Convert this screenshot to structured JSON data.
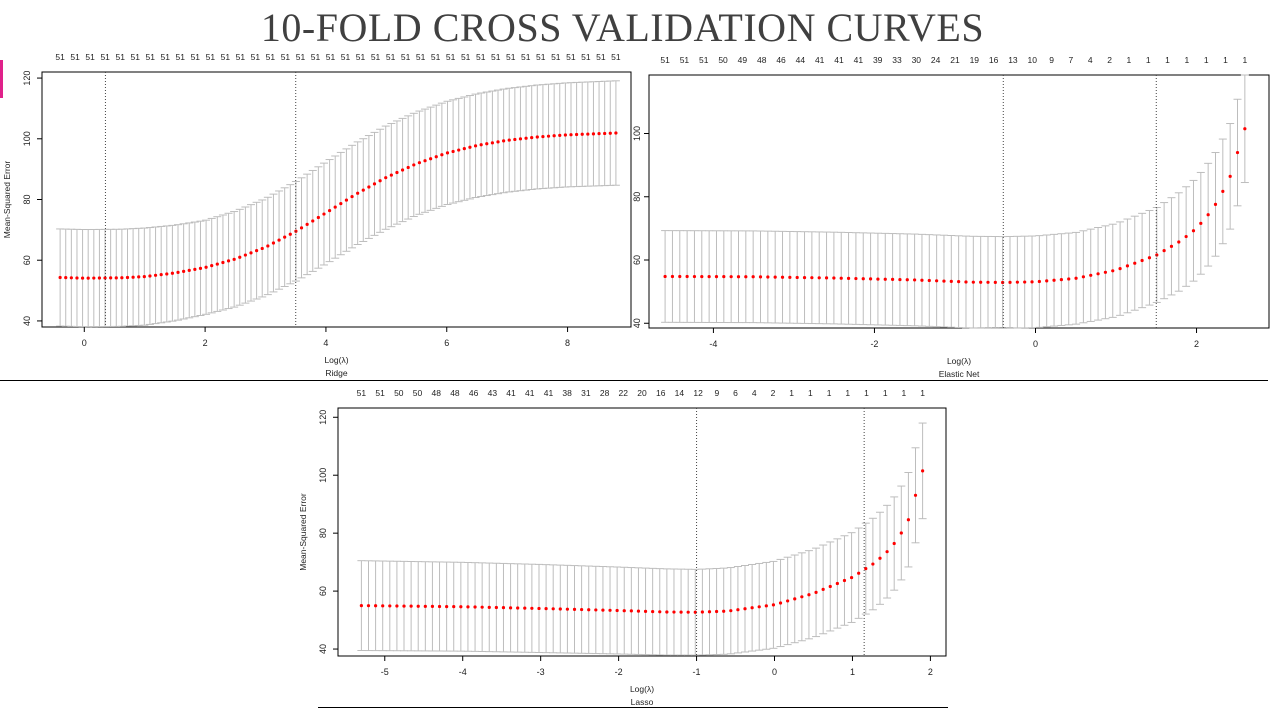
{
  "slide": {
    "title": "10-FOLD CROSS VALIDATION CURVES"
  },
  "chart_data": [
    {
      "type": "scatter",
      "title": "",
      "caption": "Ridge",
      "xlabel": "Log(λ)",
      "ylabel": "Mean-Squared Error",
      "xlim": [
        -0.7,
        9.05
      ],
      "ylim": [
        38,
        122
      ],
      "x_ticks": [
        0,
        2,
        4,
        6,
        8
      ],
      "y_ticks": [
        40,
        60,
        80,
        100,
        120
      ],
      "x_range": [
        -0.4,
        8.8
      ],
      "n_points": 100,
      "top_counts": [
        "51",
        "51",
        "51",
        "51",
        "51",
        "51",
        "51",
        "51",
        "51",
        "51",
        "51",
        "51",
        "51",
        "51",
        "51",
        "51",
        "51",
        "51",
        "51",
        "51",
        "51",
        "51",
        "51",
        "51",
        "51",
        "51",
        "51",
        "51",
        "51",
        "51",
        "51",
        "51",
        "51",
        "51",
        "51",
        "51",
        "51",
        "51"
      ],
      "vlines": [
        0.35,
        3.5
      ],
      "curve_points": [
        [
          -0.4,
          54.3
        ],
        [
          0.0,
          54.1
        ],
        [
          0.6,
          54.2
        ],
        [
          1.0,
          54.6
        ],
        [
          1.5,
          55.8
        ],
        [
          2.0,
          57.6
        ],
        [
          2.5,
          60.4
        ],
        [
          3.0,
          64.3
        ],
        [
          3.5,
          69.5
        ],
        [
          4.0,
          75.6
        ],
        [
          4.5,
          81.8
        ],
        [
          5.0,
          87.3
        ],
        [
          5.5,
          91.8
        ],
        [
          6.0,
          95.3
        ],
        [
          6.5,
          97.8
        ],
        [
          7.0,
          99.5
        ],
        [
          7.5,
          100.6
        ],
        [
          8.0,
          101.3
        ],
        [
          8.8,
          101.9
        ]
      ],
      "error_half_width": [
        [
          -0.4,
          16.0
        ],
        [
          1.0,
          16.0
        ],
        [
          2.0,
          15.5
        ],
        [
          3.0,
          16.0
        ],
        [
          4.0,
          16.8
        ],
        [
          5.0,
          17.0
        ],
        [
          6.0,
          17.0
        ],
        [
          8.8,
          17.2
        ]
      ],
      "colors": {
        "points": "#ff0000",
        "error_bars": "#bdbdbd",
        "vlines": "#444444"
      }
    },
    {
      "type": "scatter",
      "title": "",
      "caption": "Elastic Net",
      "xlabel": "Log(λ)",
      "ylabel": "",
      "xlim": [
        -4.8,
        2.9
      ],
      "ylim": [
        38.5,
        118.5
      ],
      "x_ticks": [
        -4,
        -2,
        0,
        2
      ],
      "y_ticks": [
        40,
        60,
        80,
        100
      ],
      "x_range": [
        -4.6,
        2.6
      ],
      "n_points": 80,
      "top_counts": [
        "51",
        "51",
        "51",
        "50",
        "49",
        "48",
        "46",
        "44",
        "41",
        "41",
        "41",
        "39",
        "33",
        "30",
        "24",
        "21",
        "19",
        "16",
        "13",
        "10",
        "9",
        "7",
        "4",
        "2",
        "1",
        "1",
        "1",
        "1",
        "1",
        "1",
        "1"
      ],
      "vlines": [
        -0.4,
        1.5
      ],
      "curve_points": [
        [
          -4.6,
          54.8
        ],
        [
          -3.5,
          54.7
        ],
        [
          -2.5,
          54.3
        ],
        [
          -1.5,
          53.7
        ],
        [
          -0.8,
          53.0
        ],
        [
          -0.4,
          52.9
        ],
        [
          0.0,
          53.1
        ],
        [
          0.5,
          54.2
        ],
        [
          1.0,
          56.8
        ],
        [
          1.5,
          61.5
        ],
        [
          1.8,
          66.0
        ],
        [
          2.0,
          70.0
        ],
        [
          2.2,
          76.0
        ],
        [
          2.4,
          85.0
        ],
        [
          2.6,
          101.5
        ]
      ],
      "error_half_width": [
        [
          -4.6,
          14.5
        ],
        [
          -1.0,
          14.5
        ],
        [
          0.5,
          14.5
        ],
        [
          1.5,
          15.0
        ],
        [
          2.0,
          16.0
        ],
        [
          2.6,
          17.0
        ]
      ],
      "colors": {
        "points": "#ff0000",
        "error_bars": "#bdbdbd",
        "vlines": "#444444"
      }
    },
    {
      "type": "scatter",
      "title": "",
      "caption": "Lasso",
      "xlabel": "Log(λ)",
      "ylabel": "Mean-Squared Error",
      "xlim": [
        -5.6,
        2.2
      ],
      "ylim": [
        37.6,
        123.2
      ],
      "x_ticks": [
        -5,
        -4,
        -3,
        -2,
        -1,
        0,
        1,
        2
      ],
      "y_ticks": [
        40,
        60,
        80,
        100,
        120
      ],
      "x_range": [
        -5.3,
        1.9
      ],
      "n_points": 80,
      "top_counts": [
        "51",
        "51",
        "50",
        "50",
        "48",
        "48",
        "46",
        "43",
        "41",
        "41",
        "41",
        "38",
        "31",
        "28",
        "22",
        "20",
        "16",
        "14",
        "12",
        "9",
        "6",
        "4",
        "2",
        "1",
        "1",
        "1",
        "1",
        "1",
        "1",
        "1",
        "1"
      ],
      "vlines": [
        -1.0,
        1.15
      ],
      "curve_points": [
        [
          -5.3,
          55.0
        ],
        [
          -4.0,
          54.6
        ],
        [
          -3.0,
          54.0
        ],
        [
          -2.0,
          53.3
        ],
        [
          -1.4,
          52.8
        ],
        [
          -1.0,
          52.7
        ],
        [
          -0.6,
          53.1
        ],
        [
          0.0,
          55.3
        ],
        [
          0.5,
          59.2
        ],
        [
          1.0,
          64.8
        ],
        [
          1.3,
          70.0
        ],
        [
          1.5,
          75.0
        ],
        [
          1.7,
          83.0
        ],
        [
          1.9,
          101.5
        ]
      ],
      "error_half_width": [
        [
          -5.3,
          15.5
        ],
        [
          -3.0,
          15.2
        ],
        [
          -1.0,
          14.8
        ],
        [
          0.0,
          15.0
        ],
        [
          1.0,
          15.5
        ],
        [
          1.9,
          16.5
        ]
      ],
      "colors": {
        "points": "#ff0000",
        "error_bars": "#bdbdbd",
        "vlines": "#444444"
      }
    }
  ]
}
